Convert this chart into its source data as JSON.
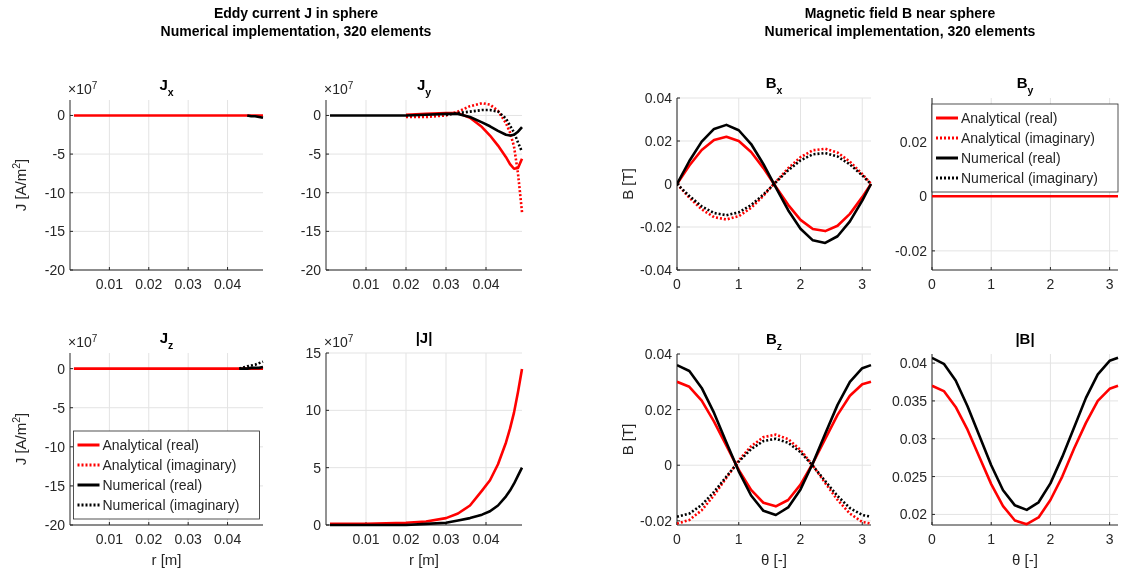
{
  "chart_data": [
    {
      "type": "line",
      "title": "J$_{x}$",
      "ylabel": "J [A/m$^{2}$]",
      "annotations": [
        "Eddy current J in sphere",
        "Numerical implementation, 320 elements",
        "×10$^{7}$"
      ],
      "x": [
        0.001,
        0.01,
        0.02,
        0.025,
        0.03,
        0.033,
        0.036,
        0.039,
        0.041,
        0.043,
        0.045,
        0.046,
        0.047,
        0.048,
        0.049
      ],
      "xlim": [
        0,
        0.049
      ],
      "xticks": [
        0.01,
        0.02,
        0.03,
        0.04
      ],
      "ylim": [
        -20,
        2
      ],
      "yticks": [
        -20,
        -15,
        -10,
        -5,
        0
      ],
      "grid": true,
      "series": [
        {
          "color": "#ff0000",
          "line_style": "solid",
          "values": [
            0,
            0,
            0,
            0,
            0,
            0,
            0,
            0,
            0,
            0,
            0,
            0,
            0,
            0,
            0
          ]
        },
        {
          "color": "#000000",
          "line_style": "solid",
          "values": [
            null,
            null,
            null,
            null,
            null,
            null,
            null,
            null,
            null,
            null,
            0,
            -0.1,
            -0.1,
            -0.2,
            -0.3
          ]
        }
      ]
    },
    {
      "type": "line",
      "title": "J$_{y}$",
      "annotations": [
        "×10$^{7}$"
      ],
      "x": [
        0.001,
        0.01,
        0.02,
        0.025,
        0.03,
        0.033,
        0.036,
        0.039,
        0.041,
        0.043,
        0.045,
        0.046,
        0.047,
        0.048,
        0.049
      ],
      "xlim": [
        0,
        0.049
      ],
      "xticks": [
        0.01,
        0.02,
        0.03,
        0.04
      ],
      "ylim": [
        -20,
        2
      ],
      "yticks": [
        -20,
        -15,
        -10,
        -5,
        0
      ],
      "grid": true,
      "series": [
        {
          "color": "#ff0000",
          "line_style": "solid",
          "values": [
            null,
            null,
            0.1,
            0.2,
            0.3,
            0.3,
            -0.3,
            -1.5,
            -2.6,
            -3.9,
            -5.4,
            -6.3,
            -6.9,
            -6.8,
            -5.6
          ]
        },
        {
          "color": "#ff0000",
          "line_style": "dotted",
          "values": [
            null,
            null,
            -0.2,
            -0.2,
            0,
            0.5,
            1.2,
            1.6,
            1.4,
            0.6,
            -1.0,
            -2.2,
            -4.0,
            -7.5,
            -12.5
          ]
        },
        {
          "color": "#000000",
          "line_style": "solid",
          "values": [
            0,
            0,
            0,
            0.1,
            0.2,
            0.2,
            -0.2,
            -0.9,
            -1.4,
            -2.0,
            -2.5,
            -2.6,
            -2.5,
            -2.1,
            -1.5
          ]
        },
        {
          "color": "#000000",
          "line_style": "dotted",
          "values": [
            null,
            null,
            null,
            null,
            0.1,
            0.3,
            0.5,
            0.7,
            0.7,
            0.5,
            -0.4,
            -1.3,
            -2.2,
            -3.5,
            -4.7
          ]
        }
      ]
    },
    {
      "type": "line",
      "title": "J$_{z}$",
      "xlabel": "r [m]",
      "ylabel": "J [A/m$^{2}$]",
      "annotations": [
        "×10$^{7}$"
      ],
      "x": [
        0.001,
        0.01,
        0.02,
        0.025,
        0.03,
        0.033,
        0.036,
        0.039,
        0.041,
        0.043,
        0.045,
        0.046,
        0.047,
        0.048,
        0.049
      ],
      "xlim": [
        0,
        0.049
      ],
      "xticks": [
        0.01,
        0.02,
        0.03,
        0.04
      ],
      "ylim": [
        -20,
        2
      ],
      "yticks": [
        -20,
        -15,
        -10,
        -5,
        0
      ],
      "grid": true,
      "legend": "bottom",
      "series": [
        {
          "name": "Analytical (real)",
          "color": "#ff0000",
          "line_style": "solid",
          "values": [
            0,
            0,
            0,
            0,
            0,
            0,
            0,
            0,
            0,
            0,
            0,
            0,
            0,
            0,
            0
          ]
        },
        {
          "name": "Analytical (imaginary)",
          "color": "#ff0000",
          "line_style": "dotted",
          "values": [
            null,
            null,
            null,
            null,
            null,
            null,
            null,
            null,
            null,
            null,
            null,
            null,
            null,
            null,
            null
          ]
        },
        {
          "name": "Numerical (real)",
          "color": "#000000",
          "line_style": "solid",
          "values": [
            null,
            null,
            null,
            null,
            null,
            null,
            null,
            null,
            null,
            0,
            0,
            0.1,
            0.1,
            0.1,
            0.2
          ]
        },
        {
          "name": "Numerical (imaginary)",
          "color": "#000000",
          "line_style": "dotted",
          "values": [
            null,
            null,
            null,
            null,
            null,
            null,
            null,
            null,
            null,
            0,
            0.3,
            0.4,
            0.5,
            0.7,
            0.9
          ]
        }
      ]
    },
    {
      "type": "line",
      "title": "|J|",
      "xlabel": "r [m]",
      "annotations": [
        "×10$^{7}$"
      ],
      "x": [
        0.001,
        0.01,
        0.02,
        0.025,
        0.03,
        0.033,
        0.036,
        0.039,
        0.041,
        0.043,
        0.045,
        0.046,
        0.047,
        0.048,
        0.049
      ],
      "xlim": [
        0,
        0.049
      ],
      "xticks": [
        0.01,
        0.02,
        0.03,
        0.04
      ],
      "ylim": [
        0,
        15
      ],
      "yticks": [
        0,
        5,
        10,
        15
      ],
      "grid": true,
      "series": [
        {
          "color": "#ff0000",
          "line_style": "solid",
          "values": [
            0.1,
            0.1,
            0.2,
            0.3,
            0.6,
            1.0,
            1.7,
            3.0,
            3.9,
            5.3,
            7.2,
            8.4,
            9.8,
            11.6,
            13.6
          ]
        },
        {
          "color": "#000000",
          "line_style": "solid",
          "values": [
            0,
            0,
            0,
            0.1,
            0.2,
            0.4,
            0.6,
            0.9,
            1.2,
            1.7,
            2.5,
            3.0,
            3.6,
            4.3,
            5.0
          ]
        }
      ]
    },
    {
      "type": "line",
      "title": "B$_{x}$",
      "ylabel": "B [T]",
      "annotations": [
        "Magnetic field B near sphere",
        "Numerical implementation, 320 elements"
      ],
      "x": [
        0,
        0.2,
        0.4,
        0.6,
        0.8,
        1.0,
        1.2,
        1.4,
        1.6,
        1.8,
        2.0,
        2.2,
        2.4,
        2.6,
        2.8,
        3.0,
        3.1416
      ],
      "xlim": [
        0,
        3.1416
      ],
      "xticks": [
        0,
        1,
        2,
        3
      ],
      "ylim": [
        -0.04,
        0.04
      ],
      "yticks": [
        -0.04,
        -0.02,
        0,
        0.02,
        0.04
      ],
      "grid": true,
      "series": [
        {
          "color": "#ff0000",
          "line_style": "solid",
          "values": [
            0,
            0.0086,
            0.0158,
            0.0205,
            0.022,
            0.02,
            0.0149,
            0.0074,
            -0.0013,
            -0.0097,
            -0.0167,
            -0.0209,
            -0.0219,
            -0.0194,
            -0.0139,
            -0.0061,
            0
          ]
        },
        {
          "color": "#ff0000",
          "line_style": "dotted",
          "values": [
            0,
            -0.0064,
            -0.0118,
            -0.0154,
            -0.0165,
            -0.015,
            -0.0111,
            -0.0055,
            0.001,
            0.0073,
            0.0125,
            0.0157,
            0.0164,
            0.0146,
            0.0104,
            0.0046,
            0
          ]
        },
        {
          "color": "#000000",
          "line_style": "solid",
          "values": [
            0,
            0.0107,
            0.0197,
            0.0256,
            0.0275,
            0.025,
            0.0186,
            0.0092,
            -0.0016,
            -0.0122,
            -0.0208,
            -0.0262,
            -0.0274,
            -0.0243,
            -0.0174,
            -0.0077,
            0
          ]
        },
        {
          "color": "#000000",
          "line_style": "dotted",
          "values": [
            0,
            -0.0056,
            -0.0104,
            -0.0135,
            -0.0145,
            -0.0132,
            -0.0098,
            -0.0049,
            0.0008,
            0.0064,
            0.011,
            0.0138,
            0.0144,
            0.0128,
            0.0091,
            0.004,
            0
          ]
        }
      ]
    },
    {
      "type": "line",
      "title": "B$_{y}$",
      "x": [
        0,
        3.1416
      ],
      "xlim": [
        0,
        3.1416
      ],
      "xticks": [
        0,
        1,
        2,
        3
      ],
      "ylim": [
        -0.027,
        0.036
      ],
      "yticks": [
        -0.02,
        0,
        0.02
      ],
      "grid": true,
      "legend": "top",
      "series": [
        {
          "name": "Analytical (real)",
          "color": "#ff0000",
          "line_style": "solid",
          "values": [
            0,
            0
          ]
        },
        {
          "name": "Analytical (imaginary)",
          "color": "#ff0000",
          "line_style": "dotted",
          "values": [
            null,
            null
          ]
        },
        {
          "name": "Numerical (real)",
          "color": "#000000",
          "line_style": "solid",
          "values": [
            null,
            null
          ]
        },
        {
          "name": "Numerical (imaginary)",
          "color": "#000000",
          "line_style": "dotted",
          "values": [
            null,
            null
          ]
        }
      ]
    },
    {
      "type": "line",
      "title": "B$_{z}$",
      "xlabel": "θ [-]",
      "ylabel": "B [T]",
      "x": [
        0,
        0.2,
        0.4,
        0.6,
        0.8,
        1.0,
        1.2,
        1.4,
        1.6,
        1.8,
        2.0,
        2.2,
        2.4,
        2.6,
        2.8,
        3.0,
        3.1416
      ],
      "xlim": [
        0,
        3.1416
      ],
      "xticks": [
        0,
        1,
        2,
        3
      ],
      "ylim": [
        -0.0215,
        0.04
      ],
      "yticks": [
        -0.02,
        0,
        0.02,
        0.04
      ],
      "grid": true,
      "series": [
        {
          "color": "#ff0000",
          "line_style": "solid",
          "values": [
            0.03,
            0.0282,
            0.0232,
            0.0157,
            0.007,
            -0.0017,
            -0.0089,
            -0.0135,
            -0.0148,
            -0.0125,
            -0.007,
            0.0007,
            0.0095,
            0.0181,
            0.025,
            0.0291,
            0.03
          ]
        },
        {
          "color": "#ff0000",
          "line_style": "dotted",
          "values": [
            -0.021,
            -0.0197,
            -0.0162,
            -0.0108,
            -0.0045,
            0.0017,
            0.0068,
            0.0101,
            0.011,
            0.0094,
            0.0055,
            -0.0001,
            -0.0064,
            -0.0125,
            -0.0174,
            -0.0204,
            -0.021
          ]
        },
        {
          "color": "#000000",
          "line_style": "solid",
          "values": [
            0.036,
            0.0339,
            0.0278,
            0.0188,
            0.0082,
            -0.0022,
            -0.0109,
            -0.0164,
            -0.0179,
            -0.0152,
            -0.0087,
            0.0007,
            0.0113,
            0.0217,
            0.03,
            0.0349,
            0.036
          ]
        },
        {
          "color": "#000000",
          "line_style": "dotted",
          "values": [
            -0.0185,
            -0.0174,
            -0.0143,
            -0.0096,
            -0.0041,
            0.0013,
            0.0058,
            0.0087,
            0.0095,
            0.0081,
            0.0047,
            -0.0002,
            -0.0057,
            -0.0111,
            -0.0154,
            -0.0179,
            -0.0185
          ]
        }
      ]
    },
    {
      "type": "line",
      "title": "|B|",
      "xlabel": "θ [-]",
      "x": [
        0,
        0.2,
        0.4,
        0.6,
        0.8,
        1.0,
        1.2,
        1.4,
        1.6,
        1.8,
        2.0,
        2.2,
        2.4,
        2.6,
        2.8,
        3.0,
        3.1416
      ],
      "xlim": [
        0,
        3.1416
      ],
      "xticks": [
        0,
        1,
        2,
        3
      ],
      "ylim": [
        0.0186,
        0.0412
      ],
      "yticks": [
        0.02,
        0.025,
        0.03,
        0.035,
        0.04
      ],
      "grid": true,
      "series": [
        {
          "color": "#ff0000",
          "line_style": "solid",
          "values": [
            0.037,
            0.0363,
            0.0342,
            0.0312,
            0.0276,
            0.024,
            0.0211,
            0.0192,
            0.0187,
            0.0196,
            0.0219,
            0.025,
            0.0287,
            0.0321,
            0.035,
            0.0366,
            0.037
          ]
        },
        {
          "color": "#000000",
          "line_style": "solid",
          "values": [
            0.0407,
            0.0399,
            0.0377,
            0.0343,
            0.0304,
            0.0265,
            0.0232,
            0.0212,
            0.0206,
            0.0216,
            0.0241,
            0.0276,
            0.0315,
            0.0354,
            0.0385,
            0.0403,
            0.0407
          ]
        }
      ]
    }
  ]
}
